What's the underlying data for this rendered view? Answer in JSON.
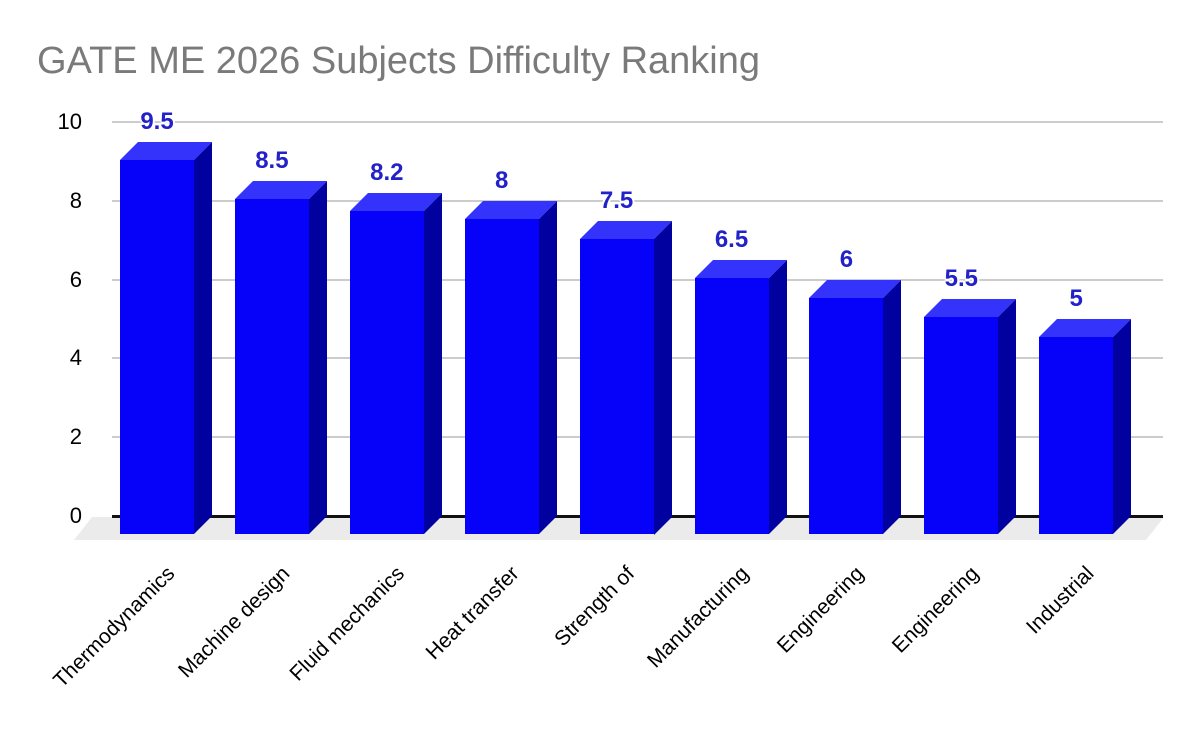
{
  "chart_data": {
    "type": "bar",
    "subtype": "3d-column",
    "title": "GATE ME 2026 Subjects Difficulty Ranking",
    "categories": [
      "Thermodynamics",
      "Machine design",
      "Fluid mechanics",
      "Heat transfer",
      "Strength of",
      "Manufacturing",
      "Engineering",
      "Engineering",
      "Industrial"
    ],
    "values": [
      9.5,
      8.5,
      8.2,
      8,
      7.5,
      6.5,
      6,
      5.5,
      5
    ],
    "value_labels": [
      "9.5",
      "8.5",
      "8.2",
      "8",
      "7.5",
      "6.5",
      "6",
      "5.5",
      "5"
    ],
    "y_ticks": [
      0,
      2,
      4,
      6,
      8,
      10
    ],
    "y_tick_labels": [
      "0",
      "2",
      "4",
      "6",
      "8",
      "10"
    ],
    "ylim": [
      0,
      10
    ],
    "xlabel": "",
    "ylabel": "",
    "grid": true,
    "legend": "none",
    "x_label_rotation_deg": 45,
    "colors": {
      "bar_front": "#0602fa",
      "bar_top": "#3433fb",
      "bar_side": "#0101a0",
      "annotation": "#2222c8",
      "gridline": "#cccccc",
      "baseline": "#111111",
      "floor": "#ebebeb",
      "title": "#7a7a7a",
      "axis_text": "#000000",
      "background": "#ffffff"
    }
  }
}
